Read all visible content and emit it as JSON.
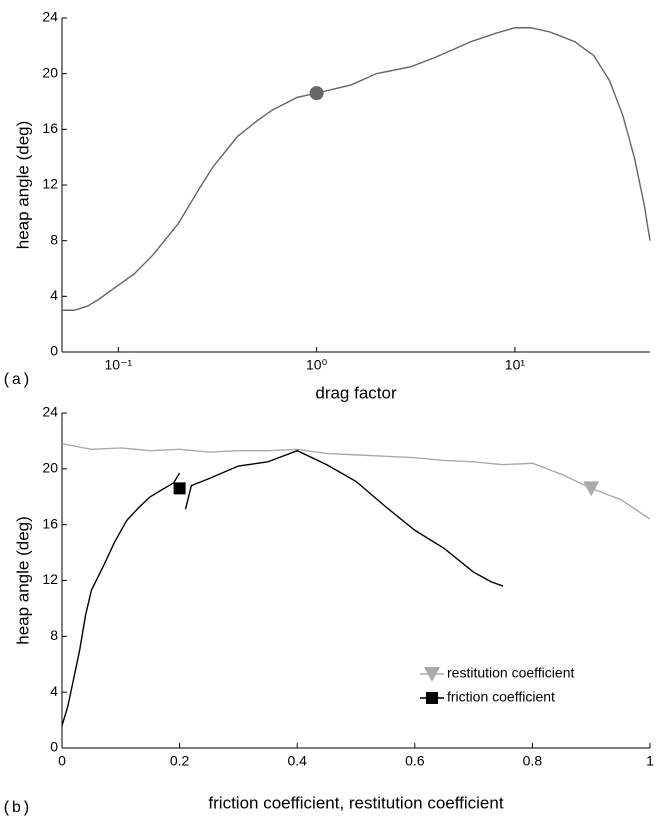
{
  "chart_data": [
    {
      "type": "line",
      "panel_label": "(a)",
      "xlabel": "drag factor",
      "ylabel": "heap angle (deg)",
      "xscale": "log",
      "xlim": [
        0.052,
        48
      ],
      "ylim": [
        0,
        24
      ],
      "xticks": [
        {
          "value": 0.1,
          "label": "10⁻¹"
        },
        {
          "value": 1,
          "label": "10⁰"
        },
        {
          "value": 10,
          "label": "10¹"
        }
      ],
      "yticks": [
        0,
        4,
        8,
        12,
        16,
        20,
        24
      ],
      "series": [
        {
          "color": "#666666",
          "x": [
            0.052,
            0.06,
            0.07,
            0.08,
            0.1,
            0.12,
            0.15,
            0.2,
            0.25,
            0.3,
            0.4,
            0.5,
            0.6,
            0.8,
            1.0,
            1.5,
            2,
            3,
            4,
            5,
            6,
            8,
            10,
            12,
            15,
            20,
            25,
            30,
            35,
            40,
            45,
            48
          ],
          "values": [
            3.0,
            3.0,
            3.3,
            3.8,
            4.8,
            5.6,
            7.0,
            9.2,
            11.5,
            13.3,
            15.5,
            16.6,
            17.4,
            18.3,
            18.6,
            19.2,
            20.0,
            20.5,
            21.2,
            21.8,
            22.3,
            22.9,
            23.3,
            23.3,
            23.0,
            22.3,
            21.3,
            19.5,
            17.0,
            14.0,
            10.5,
            8.0
          ],
          "marker": "circle",
          "marker_x": 1,
          "marker_y": 18.6
        }
      ]
    },
    {
      "type": "line",
      "panel_label": "(b)",
      "xlabel": "friction coefficient,  restitution coefficient",
      "ylabel": "heap angle (deg)",
      "xscale": "linear",
      "xlim": [
        0,
        1
      ],
      "ylim": [
        0,
        24
      ],
      "xticks": [
        0,
        0.2,
        0.4,
        0.6,
        0.8,
        1
      ],
      "yticks": [
        0,
        4,
        8,
        12,
        16,
        20,
        24
      ],
      "legend": "lower right",
      "series": [
        {
          "name": "restitution coefficient",
          "color": "#aaaaaa",
          "x": [
            0,
            0.05,
            0.1,
            0.15,
            0.2,
            0.25,
            0.3,
            0.35,
            0.4,
            0.45,
            0.5,
            0.55,
            0.6,
            0.65,
            0.7,
            0.75,
            0.8,
            0.85,
            0.9,
            0.95,
            1.0
          ],
          "values": [
            21.8,
            21.4,
            21.5,
            21.3,
            21.4,
            21.2,
            21.3,
            21.3,
            21.4,
            21.1,
            21.0,
            20.9,
            20.8,
            20.6,
            20.5,
            20.3,
            20.4,
            19.6,
            18.6,
            17.8,
            16.4
          ],
          "marker": "triangle",
          "marker_x": 0.9,
          "marker_y": 18.6
        },
        {
          "name": "friction coefficient",
          "color": "#000000",
          "x": [
            0,
            0.01,
            0.02,
            0.03,
            0.04,
            0.05,
            0.07,
            0.09,
            0.11,
            0.13,
            0.15,
            0.17,
            0.19,
            0.2,
            0.205,
            0.21,
            0.22,
            0.25,
            0.3,
            0.35,
            0.4,
            0.45,
            0.5,
            0.55,
            0.6,
            0.65,
            0.7,
            0.73,
            0.75
          ],
          "values": [
            1.6,
            3,
            5,
            7,
            9.5,
            11.3,
            13,
            14.8,
            16.3,
            17.2,
            18,
            18.5,
            19.0,
            19.7,
            null,
            17.1,
            18.8,
            19.3,
            20.2,
            20.5,
            21.3,
            20.3,
            19.1,
            17.3,
            15.6,
            14.3,
            12.6,
            11.9,
            11.6
          ],
          "marker": "square",
          "marker_x": 0.2,
          "marker_y": 18.6
        }
      ]
    }
  ]
}
